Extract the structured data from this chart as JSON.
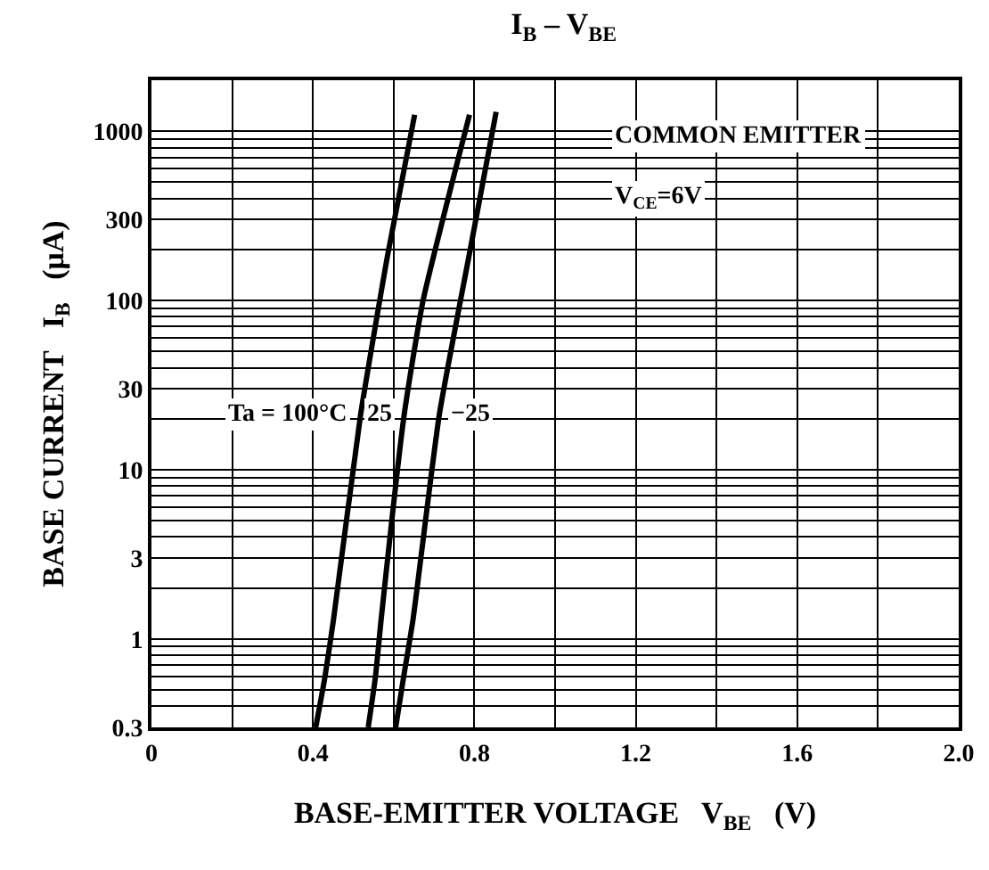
{
  "chart_data": {
    "type": "line",
    "title": "I$_{B}$ – V$_{BE}$",
    "xlabel": "BASE-EMITTER VOLTAGE   V$_{BE}$   (V)",
    "ylabel": "BASE CURRENT   I$_{B}$   (μA)",
    "log": "y",
    "grid": true,
    "marker": "none",
    "line_style": "solid",
    "xlim": [
      0,
      2.0
    ],
    "ylim": [
      0.3,
      2000
    ],
    "xticks": [
      0,
      {
        "value": 0.2,
        "label": null
      },
      0.4,
      {
        "value": 0.6,
        "label": null
      },
      0.8,
      {
        "value": 1.0,
        "label": null
      },
      1.2,
      {
        "value": 1.4,
        "label": null
      },
      1.6,
      {
        "value": 1.8,
        "label": null
      },
      {
        "value": 2.0,
        "label": "2.0"
      }
    ],
    "yticks": [
      0.3,
      {
        "value": 0.4,
        "label": null
      },
      {
        "value": 0.5,
        "label": null
      },
      {
        "value": 0.6,
        "label": null
      },
      {
        "value": 0.7,
        "label": null
      },
      {
        "value": 0.8,
        "label": null
      },
      {
        "value": 0.9,
        "label": null
      },
      1,
      {
        "value": 2,
        "label": null
      },
      3,
      {
        "value": 4,
        "label": null
      },
      {
        "value": 5,
        "label": null
      },
      {
        "value": 6,
        "label": null
      },
      {
        "value": 7,
        "label": null
      },
      {
        "value": 8,
        "label": null
      },
      {
        "value": 9,
        "label": null
      },
      10,
      {
        "value": 20,
        "label": null
      },
      30,
      {
        "value": 40,
        "label": null
      },
      {
        "value": 50,
        "label": null
      },
      {
        "value": 60,
        "label": null
      },
      {
        "value": 70,
        "label": null
      },
      {
        "value": 80,
        "label": null
      },
      {
        "value": 90,
        "label": null
      },
      100,
      {
        "value": 200,
        "label": null
      },
      300,
      {
        "value": 400,
        "label": null
      },
      {
        "value": 500,
        "label": null
      },
      {
        "value": 600,
        "label": null
      },
      {
        "value": 700,
        "label": null
      },
      {
        "value": 800,
        "label": null
      },
      {
        "value": 900,
        "label": null
      },
      1000
    ],
    "series": [
      {
        "name": "Ta = 100°C",
        "color": "#000000",
        "x": [
          0.407,
          0.43,
          0.451,
          0.518,
          0.586,
          0.652
        ],
        "values": [
          0.3,
          0.6,
          1.3,
          21,
          190,
          1250
        ]
      },
      {
        "name": "25",
        "color": "#000000",
        "x": [
          0.537,
          0.555,
          0.569,
          0.626,
          0.673,
          0.788
        ],
        "values": [
          0.3,
          0.6,
          1.3,
          21,
          100,
          1250
        ]
      },
      {
        "name": "−25",
        "color": "#000000",
        "x": [
          0.605,
          0.625,
          0.648,
          0.713,
          0.788,
          0.854
        ],
        "values": [
          0.3,
          0.6,
          1.3,
          21,
          190,
          1300
        ]
      }
    ],
    "annotations": [
      "COMMON EMITTER",
      "V$_{CE}$=6V"
    ]
  }
}
